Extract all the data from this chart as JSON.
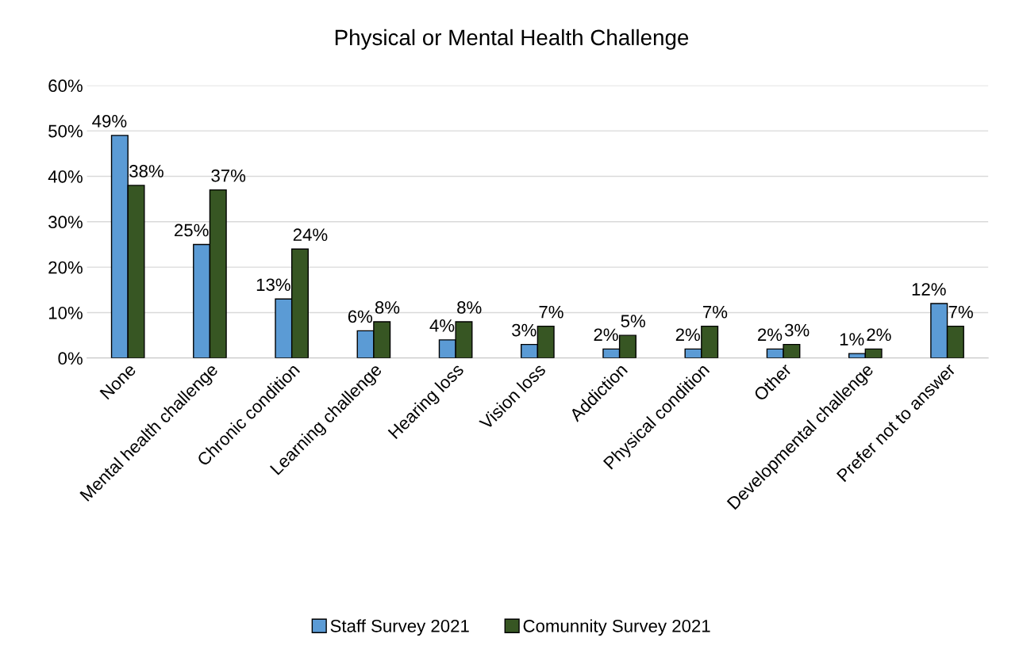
{
  "chart_data": {
    "type": "bar",
    "title": "Physical or Mental Health Challenge",
    "categories": [
      "None",
      "Mental health challenge",
      "Chronic condition",
      "Learning challenge",
      "Hearing loss",
      "Vision loss",
      "Addiction",
      "Physical condition",
      "Other",
      "Developmental challenge",
      "Prefer not to answer"
    ],
    "series": [
      {
        "name": "Staff Survey 2021",
        "color": "#5b9bd5",
        "values": [
          49,
          25,
          13,
          6,
          4,
          3,
          2,
          2,
          2,
          1,
          12
        ],
        "value_labels": [
          "49%",
          "25%",
          "13%",
          "6%",
          "4%",
          "3%",
          "2%",
          "2%",
          "2%",
          "1%",
          "12%"
        ]
      },
      {
        "name": "Comunnity Survey 2021",
        "color": "#375623",
        "values": [
          38,
          37,
          24,
          8,
          8,
          7,
          5,
          7,
          3,
          2,
          7
        ],
        "value_labels": [
          "38%",
          "37%",
          "24%",
          "8%",
          "8%",
          "7%",
          "5%",
          "7%",
          "3%",
          "2%",
          "7%"
        ]
      }
    ],
    "ylim": [
      0,
      60
    ],
    "yticks": [
      {
        "value": 0,
        "label": "0%"
      },
      {
        "value": 10,
        "label": "10%"
      },
      {
        "value": 20,
        "label": "20%"
      },
      {
        "value": 30,
        "label": "30%"
      },
      {
        "value": 40,
        "label": "40%"
      },
      {
        "value": 50,
        "label": "50%"
      },
      {
        "value": 60,
        "label": "60%"
      }
    ],
    "grid": "y",
    "legend": "bottom"
  }
}
